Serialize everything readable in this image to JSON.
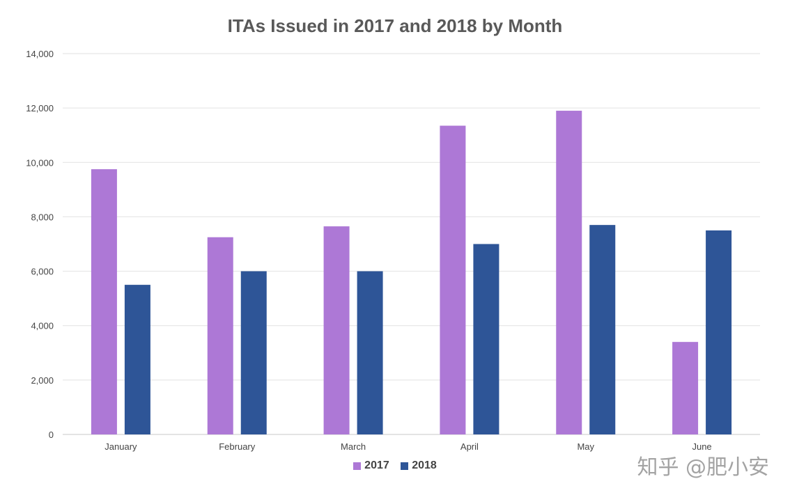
{
  "chart_data": {
    "type": "bar",
    "title": "ITAs Issued in 2017 and 2018 by Month",
    "categories": [
      "January",
      "February",
      "March",
      "April",
      "May",
      "June"
    ],
    "series": [
      {
        "name": "2017",
        "color": "#ad78d6",
        "values": [
          9750,
          7250,
          7650,
          11350,
          11900,
          3400
        ]
      },
      {
        "name": "2018",
        "color": "#2e5597",
        "values": [
          5500,
          6000,
          6000,
          7000,
          7700,
          7500
        ]
      }
    ],
    "y_ticks": [
      "0",
      "2,000",
      "4,000",
      "6,000",
      "8,000",
      "10,000",
      "12,000",
      "14,000"
    ],
    "ylim": [
      0,
      14000
    ],
    "grid": true,
    "legend_position": "bottom"
  },
  "watermark": "知乎 @肥小安"
}
